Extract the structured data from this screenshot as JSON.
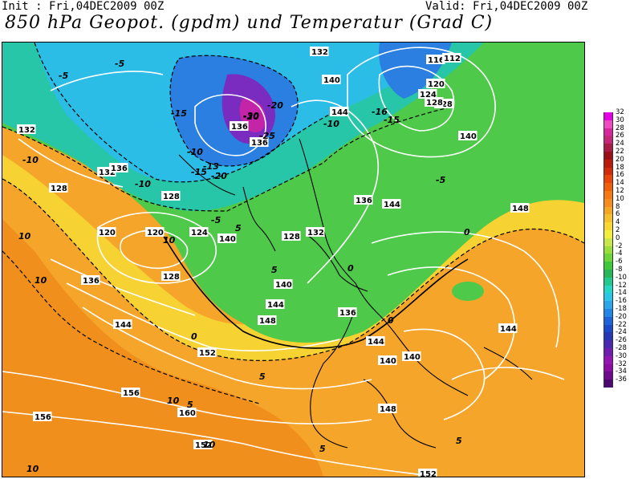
{
  "header": {
    "init": "Init : Fri,04DEC2009 00Z",
    "valid": "Valid: Fri,04DEC2009 00Z",
    "title": "850 hPa Geopot. (gpdm) und Temperatur (Grad C)"
  },
  "colorbar": {
    "labels": [
      "32",
      "30",
      "28",
      "26",
      "24",
      "22",
      "20",
      "18",
      "16",
      "14",
      "12",
      "10",
      "8",
      "6",
      "4",
      "2",
      "0",
      "-2",
      "-4",
      "-6",
      "-8",
      "-10",
      "-12",
      "-14",
      "-16",
      "-18",
      "-20",
      "-22",
      "-24",
      "-26",
      "-28",
      "-30",
      "-32",
      "-34",
      "-36"
    ],
    "colors": [
      "#e600e6",
      "#ee4cc0",
      "#d6279f",
      "#c4287a",
      "#a81d45",
      "#9b0f1a",
      "#b91c0d",
      "#d12b0b",
      "#e8450a",
      "#f05f0b",
      "#f47a13",
      "#f48c1e",
      "#f5a623",
      "#f6c02c",
      "#f8d72f",
      "#f2ee3a",
      "#c9e64a",
      "#9ade3c",
      "#6dd53a",
      "#3fc83b",
      "#27b65a",
      "#21c890",
      "#26d6c5",
      "#29c6e8",
      "#2aa7ea",
      "#2186e6",
      "#1e63d8",
      "#1c49c8",
      "#2638b4",
      "#4a29b0",
      "#6d1fb0",
      "#9316b4",
      "#8e0ca6",
      "#6e0a8e",
      "#4c0a70"
    ]
  },
  "map_labels": {
    "height_contours": [
      "156",
      "156",
      "160",
      "152",
      "148",
      "148",
      "144",
      "144",
      "144",
      "140",
      "140",
      "136",
      "136",
      "136",
      "132",
      "132",
      "128",
      "128",
      "124",
      "120",
      "120",
      "128",
      "128",
      "132",
      "136",
      "140",
      "140",
      "144",
      "144",
      "148",
      "152",
      "152",
      "144",
      "140",
      "136",
      "132",
      "128",
      "124",
      "120",
      "116",
      "112",
      "128",
      "140",
      "136"
    ],
    "temperature_contours": [
      "10",
      "10",
      "10",
      "10",
      "10",
      "10",
      "5",
      "5",
      "5",
      "5",
      "5",
      "5",
      "0",
      "0",
      "0",
      "0",
      "-5",
      "-5",
      "-5",
      "-5",
      "-10",
      "-10",
      "-10",
      "-15",
      "-15",
      "-20",
      "-20",
      "-25",
      "-30",
      "-10",
      "-15",
      "-20",
      "-13",
      "-16"
    ]
  }
}
